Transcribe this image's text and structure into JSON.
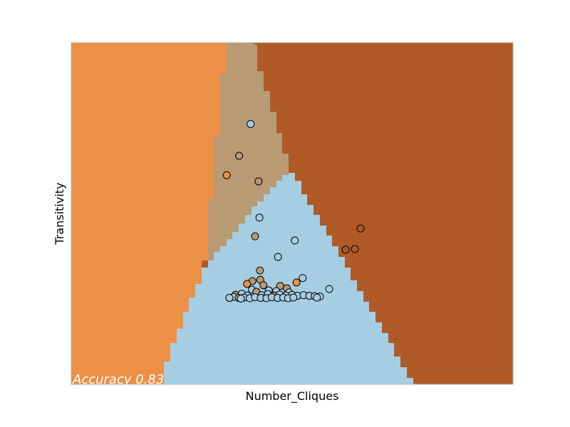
{
  "chart_data": {
    "type": "scatter",
    "title": "",
    "xlabel": "Number_Cliques",
    "ylabel": "Transitivity",
    "xlim": [
      0,
      100
    ],
    "ylim": [
      0,
      100
    ],
    "grid": false,
    "annotation": "Accuracy 0.83",
    "colors": {
      "light_blue": "#a6cee3",
      "tan": "#b89a74",
      "orange": "#ec9046",
      "brown": "#b05a28"
    },
    "regions": [
      {
        "class": "orange",
        "color": "#ec9046"
      },
      {
        "class": "tan",
        "color": "#b89a74"
      },
      {
        "class": "light_blue",
        "color": "#a6cee3"
      },
      {
        "class": "brown",
        "color": "#b05a28"
      }
    ],
    "points": [
      {
        "x": 40.6,
        "y": 76.2,
        "class": "light_blue"
      },
      {
        "x": 38.0,
        "y": 66.9,
        "class": "tan"
      },
      {
        "x": 35.2,
        "y": 61.2,
        "class": "orange"
      },
      {
        "x": 42.4,
        "y": 59.4,
        "class": "tan"
      },
      {
        "x": 42.6,
        "y": 48.8,
        "class": "light_blue"
      },
      {
        "x": 41.6,
        "y": 43.3,
        "class": "tan"
      },
      {
        "x": 50.6,
        "y": 42.1,
        "class": "light_blue"
      },
      {
        "x": 65.5,
        "y": 45.6,
        "class": "brown"
      },
      {
        "x": 64.2,
        "y": 39.6,
        "class": "brown"
      },
      {
        "x": 62.1,
        "y": 39.4,
        "class": "brown"
      },
      {
        "x": 46.8,
        "y": 37.3,
        "class": "light_blue"
      },
      {
        "x": 42.7,
        "y": 33.3,
        "class": "tan"
      },
      {
        "x": 52.4,
        "y": 31.1,
        "class": "light_blue"
      },
      {
        "x": 41.0,
        "y": 30.2,
        "class": "tan"
      },
      {
        "x": 42.8,
        "y": 30.6,
        "class": "tan"
      },
      {
        "x": 39.8,
        "y": 29.4,
        "class": "orange"
      },
      {
        "x": 51.0,
        "y": 29.8,
        "class": "orange"
      },
      {
        "x": 47.3,
        "y": 28.8,
        "class": "tan"
      },
      {
        "x": 43.5,
        "y": 29.0,
        "class": "tan"
      },
      {
        "x": 48.8,
        "y": 28.1,
        "class": "tan"
      },
      {
        "x": 58.4,
        "y": 27.9,
        "class": "light_blue"
      },
      {
        "x": 40.9,
        "y": 27.7,
        "class": "light_blue"
      },
      {
        "x": 44.7,
        "y": 27.5,
        "class": "light_blue"
      },
      {
        "x": 46.4,
        "y": 27.3,
        "class": "light_blue"
      },
      {
        "x": 41.9,
        "y": 27.1,
        "class": "tan"
      },
      {
        "x": 49.3,
        "y": 26.9,
        "class": "light_blue"
      },
      {
        "x": 37.2,
        "y": 26.2,
        "class": "tan"
      },
      {
        "x": 38.6,
        "y": 26.5,
        "class": "light_blue"
      },
      {
        "x": 39.9,
        "y": 26.0,
        "class": "light_blue"
      },
      {
        "x": 43.1,
        "y": 26.1,
        "class": "light_blue"
      },
      {
        "x": 44.5,
        "y": 26.4,
        "class": "light_blue"
      },
      {
        "x": 45.9,
        "y": 26.0,
        "class": "tan"
      },
      {
        "x": 47.2,
        "y": 26.3,
        "class": "light_blue"
      },
      {
        "x": 48.6,
        "y": 26.0,
        "class": "light_blue"
      },
      {
        "x": 50.0,
        "y": 26.2,
        "class": "light_blue"
      },
      {
        "x": 51.2,
        "y": 25.9,
        "class": "light_blue"
      },
      {
        "x": 52.6,
        "y": 26.1,
        "class": "light_blue"
      },
      {
        "x": 53.9,
        "y": 25.9,
        "class": "light_blue"
      },
      {
        "x": 55.1,
        "y": 25.8,
        "class": "light_blue"
      },
      {
        "x": 56.3,
        "y": 25.7,
        "class": "light_blue"
      },
      {
        "x": 36.8,
        "y": 25.6,
        "class": "light_blue"
      },
      {
        "x": 37.9,
        "y": 25.3,
        "class": "tan"
      },
      {
        "x": 39.1,
        "y": 25.4,
        "class": "light_blue"
      },
      {
        "x": 40.4,
        "y": 25.2,
        "class": "light_blue"
      },
      {
        "x": 41.6,
        "y": 25.5,
        "class": "light_blue"
      },
      {
        "x": 42.9,
        "y": 25.3,
        "class": "light_blue"
      },
      {
        "x": 44.2,
        "y": 25.2,
        "class": "light_blue"
      },
      {
        "x": 45.4,
        "y": 25.5,
        "class": "light_blue"
      },
      {
        "x": 46.7,
        "y": 25.3,
        "class": "light_blue"
      },
      {
        "x": 48.0,
        "y": 25.4,
        "class": "light_blue"
      },
      {
        "x": 49.1,
        "y": 25.2,
        "class": "light_blue"
      },
      {
        "x": 50.3,
        "y": 25.4,
        "class": "light_blue"
      },
      {
        "x": 35.8,
        "y": 25.3,
        "class": "light_blue"
      },
      {
        "x": 55.6,
        "y": 25.4,
        "class": "light_blue"
      },
      {
        "x": 38.4,
        "y": 25.1,
        "class": "light_blue"
      }
    ]
  }
}
